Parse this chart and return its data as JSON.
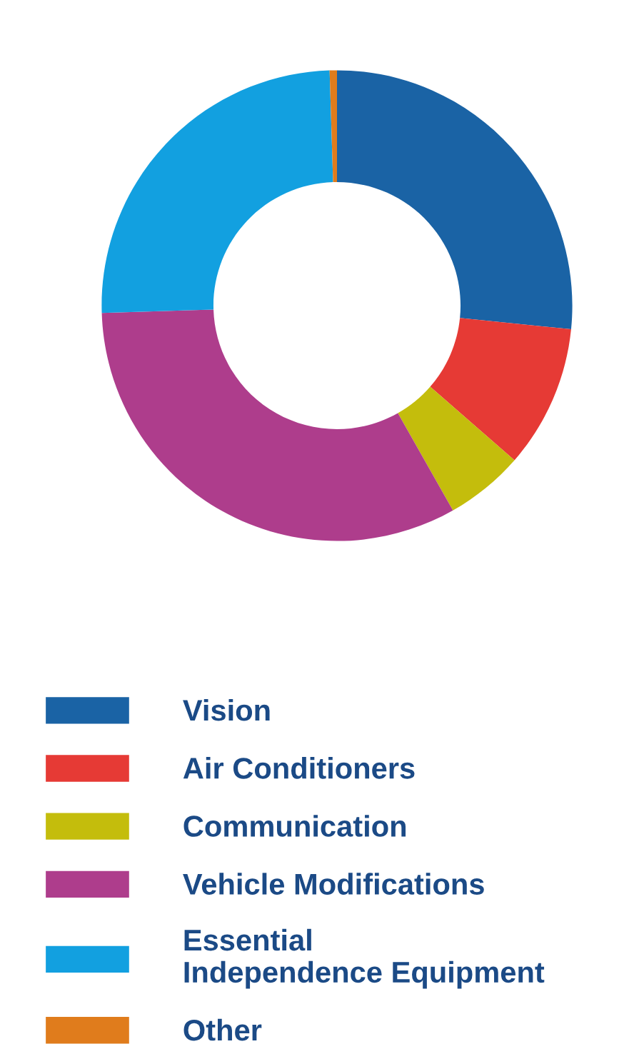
{
  "chart_data": {
    "type": "donut",
    "categories": [
      "Vision",
      "Air Conditioners",
      "Communication",
      "Vehicle Modifications",
      "Essential\nIndependence Equipment",
      "Other"
    ],
    "values": [
      26.6,
      9.8,
      5.4,
      32.7,
      25.0,
      0.5
    ],
    "colors": [
      "#1a63a5",
      "#e63a35",
      "#c4bd0c",
      "#ae3d8c",
      "#12a0e0",
      "#e07c1c"
    ],
    "legend": "bottom"
  }
}
